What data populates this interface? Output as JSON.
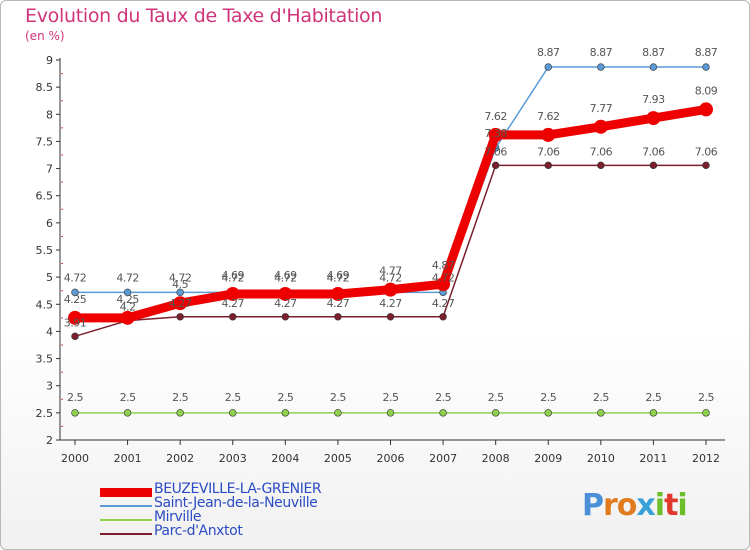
{
  "header": {
    "title": "Evolution du Taux de Taxe d'Habitation",
    "subtitle": "(en %)"
  },
  "brand": {
    "text": "Proxiti",
    "letter_colors": [
      "#4a90d9",
      "#e07b1f",
      "#e07b1f",
      "#3aa0d8",
      "#6cbf2a",
      "#e0382c",
      "#6cbf2a"
    ]
  },
  "chart_data": {
    "type": "line",
    "title": "Evolution du Taux de Taxe d'Habitation",
    "subtitle": "(en %)",
    "x": [
      "2000",
      "2001",
      "2002",
      "2003",
      "2004",
      "2005",
      "2006",
      "2007",
      "2008",
      "2009",
      "2010",
      "2011",
      "2012"
    ],
    "ylim": [
      2,
      9
    ],
    "yticks": [
      2,
      2.5,
      3,
      3.5,
      4,
      4.5,
      5,
      5.5,
      6,
      6.5,
      7,
      7.5,
      8,
      8.5,
      9
    ],
    "grid": false,
    "legend_position": "bottom-left",
    "series": [
      {
        "name": "BEUZEVILLE-LA-GRENIER",
        "color": "#ee0000",
        "values": [
          4.25,
          4.25,
          4.52,
          4.69,
          4.69,
          4.69,
          4.77,
          4.87,
          7.62,
          7.62,
          7.77,
          7.93,
          8.09
        ],
        "labels": [
          "4.25",
          "4.25",
          "4.5",
          "4.69",
          "4.69",
          "4.69",
          "4.77",
          "4.87",
          "7.62",
          "7.62",
          "7.77",
          "7.93",
          "8.09"
        ]
      },
      {
        "name": "Saint-Jean-de-la-Neuville",
        "color": "#5b9bd5",
        "values": [
          4.72,
          4.72,
          4.72,
          4.72,
          4.72,
          4.72,
          4.72,
          4.72,
          7.38,
          8.87,
          8.87,
          8.87,
          8.87
        ],
        "labels": [
          "4.72",
          "4.72",
          "4.72",
          "4.72",
          "4.72",
          "4.72",
          "4.72",
          "4.72",
          "7.38",
          "8.87",
          "8.87",
          "8.87",
          "8.87"
        ]
      },
      {
        "name": "Mirville",
        "color": "#8fd14f",
        "values": [
          2.5,
          2.5,
          2.5,
          2.5,
          2.5,
          2.5,
          2.5,
          2.5,
          2.5,
          2.5,
          2.5,
          2.5,
          2.5
        ],
        "labels": [
          "2.5",
          "2.5",
          "2.5",
          "2.5",
          "2.5",
          "2.5",
          "2.5",
          "2.5",
          "2.5",
          "2.5",
          "2.5",
          "2.5",
          "2.5"
        ]
      },
      {
        "name": "Parc-d'Anxtot",
        "color": "#7a1f2b",
        "values": [
          3.91,
          4.2,
          4.27,
          4.27,
          4.27,
          4.27,
          4.27,
          4.27,
          7.06,
          7.06,
          7.06,
          7.06,
          7.06
        ],
        "labels": [
          "3.91",
          "4.2",
          "4.27",
          "4.27",
          "4.27",
          "4.27",
          "4.27",
          "4.27",
          "7.06",
          "7.06",
          "7.06",
          "7.06",
          "7.06"
        ]
      }
    ]
  }
}
